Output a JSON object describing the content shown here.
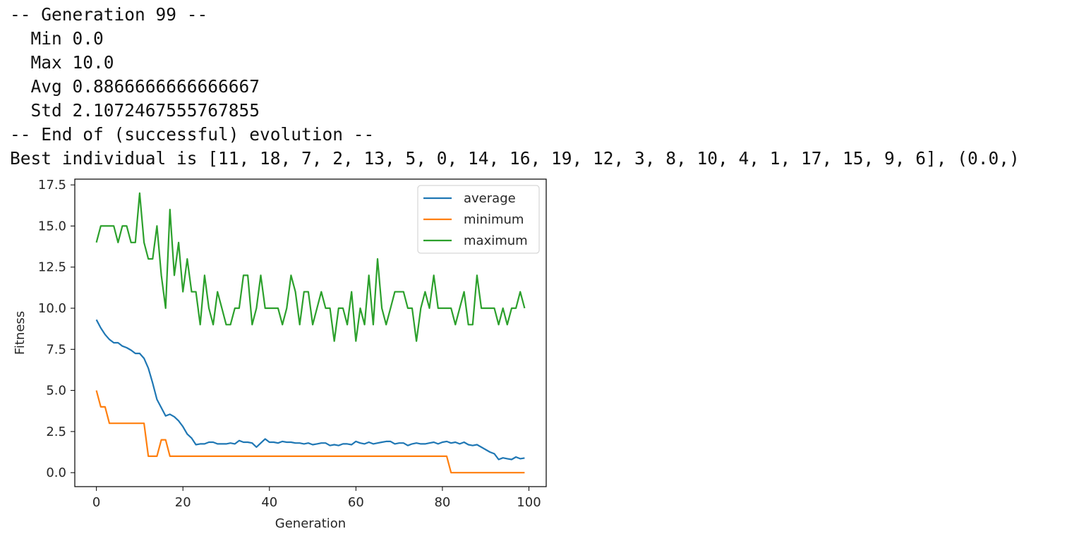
{
  "output": {
    "lines": [
      "-- Generation 99 --",
      "  Min 0.0",
      "  Max 10.0",
      "  Avg 0.8866666666666667",
      "  Std 2.1072467555767855",
      "-- End of (successful) evolution --",
      "Best individual is [11, 18, 7, 2, 13, 5, 0, 14, 16, 19, 12, 3, 8, 10, 4, 1, 17, 15, 9, 6], (0.0,)"
    ]
  },
  "chart_data": {
    "type": "line",
    "title": "",
    "xlabel": "Generation",
    "ylabel": "Fitness",
    "xlim": [
      -5,
      104
    ],
    "ylim": [
      -0.85,
      17.85
    ],
    "xticks": [
      0,
      20,
      40,
      60,
      80,
      100
    ],
    "xtick_labels": [
      "0",
      "20",
      "40",
      "60",
      "80",
      "100"
    ],
    "yticks": [
      0,
      2.5,
      5,
      7.5,
      10,
      12.5,
      15,
      17.5
    ],
    "ytick_labels": [
      "0.0",
      "2.5",
      "5.0",
      "7.5",
      "10.0",
      "12.5",
      "15.0",
      "17.5"
    ],
    "grid": false,
    "legend_position": "top-right",
    "x": [
      0,
      1,
      2,
      3,
      4,
      5,
      6,
      7,
      8,
      9,
      10,
      11,
      12,
      13,
      14,
      15,
      16,
      17,
      18,
      19,
      20,
      21,
      22,
      23,
      24,
      25,
      26,
      27,
      28,
      29,
      30,
      31,
      32,
      33,
      34,
      35,
      36,
      37,
      38,
      39,
      40,
      41,
      42,
      43,
      44,
      45,
      46,
      47,
      48,
      49,
      50,
      51,
      52,
      53,
      54,
      55,
      56,
      57,
      58,
      59,
      60,
      61,
      62,
      63,
      64,
      65,
      66,
      67,
      68,
      69,
      70,
      71,
      72,
      73,
      74,
      75,
      76,
      77,
      78,
      79,
      80,
      81,
      82,
      83,
      84,
      85,
      86,
      87,
      88,
      89,
      90,
      91,
      92,
      93,
      94,
      95,
      96,
      97,
      98,
      99
    ],
    "series": [
      {
        "name": "average",
        "color": "#1f77b4",
        "values": [
          9.3,
          8.8,
          8.4,
          8.1,
          7.9,
          7.9,
          7.7,
          7.6,
          7.45,
          7.25,
          7.25,
          6.95,
          6.35,
          5.45,
          4.45,
          3.95,
          3.45,
          3.55,
          3.4,
          3.15,
          2.8,
          2.35,
          2.1,
          1.7,
          1.75,
          1.75,
          1.85,
          1.85,
          1.75,
          1.75,
          1.75,
          1.8,
          1.75,
          1.95,
          1.85,
          1.85,
          1.8,
          1.55,
          1.8,
          2.05,
          1.85,
          1.85,
          1.8,
          1.9,
          1.85,
          1.85,
          1.8,
          1.8,
          1.75,
          1.8,
          1.7,
          1.75,
          1.8,
          1.8,
          1.65,
          1.7,
          1.65,
          1.75,
          1.75,
          1.7,
          1.9,
          1.8,
          1.75,
          1.85,
          1.75,
          1.8,
          1.85,
          1.9,
          1.9,
          1.75,
          1.8,
          1.8,
          1.65,
          1.75,
          1.8,
          1.75,
          1.75,
          1.8,
          1.85,
          1.75,
          1.85,
          1.9,
          1.8,
          1.85,
          1.75,
          1.85,
          1.7,
          1.65,
          1.7,
          1.55,
          1.4,
          1.25,
          1.15,
          0.8,
          0.9,
          0.85,
          0.8,
          0.95,
          0.85,
          0.89
        ]
      },
      {
        "name": "minimum",
        "color": "#ff7f0e",
        "values": [
          5,
          4,
          4,
          3,
          3,
          3,
          3,
          3,
          3,
          3,
          3,
          3,
          1,
          1,
          1,
          2,
          2,
          1,
          1,
          1,
          1,
          1,
          1,
          1,
          1,
          1,
          1,
          1,
          1,
          1,
          1,
          1,
          1,
          1,
          1,
          1,
          1,
          1,
          1,
          1,
          1,
          1,
          1,
          1,
          1,
          1,
          1,
          1,
          1,
          1,
          1,
          1,
          1,
          1,
          1,
          1,
          1,
          1,
          1,
          1,
          1,
          1,
          1,
          1,
          1,
          1,
          1,
          1,
          1,
          1,
          1,
          1,
          1,
          1,
          1,
          1,
          1,
          1,
          1,
          1,
          1,
          1,
          0,
          0,
          0,
          0,
          0,
          0,
          0,
          0,
          0,
          0,
          0,
          0,
          0,
          0,
          0,
          0,
          0,
          0
        ]
      },
      {
        "name": "maximum",
        "color": "#2ca02c",
        "values": [
          14,
          15,
          15,
          15,
          15,
          14,
          15,
          15,
          14,
          14,
          17,
          14,
          13,
          13,
          15,
          12,
          10,
          16,
          12,
          14,
          11,
          13,
          11,
          11,
          9,
          12,
          10,
          9,
          11,
          10,
          9,
          9,
          10,
          10,
          12,
          12,
          9,
          10,
          12,
          10,
          10,
          10,
          10,
          9,
          10,
          12,
          11,
          9,
          11,
          11,
          9,
          10,
          11,
          10,
          10,
          8,
          10,
          10,
          9,
          11,
          8,
          10,
          9,
          12,
          9,
          13,
          10,
          9,
          10,
          11,
          11,
          11,
          10,
          10,
          8,
          10,
          11,
          10,
          12,
          10,
          10,
          10,
          10,
          9,
          10,
          11,
          9,
          9,
          12,
          10,
          10,
          10,
          10,
          9,
          10,
          9,
          10,
          10,
          11,
          10
        ]
      }
    ]
  }
}
